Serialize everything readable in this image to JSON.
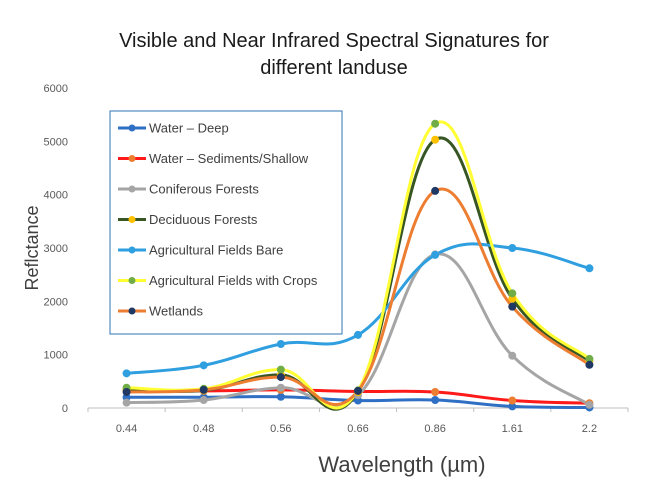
{
  "chart_data": {
    "type": "line",
    "title": [
      "Visible and Near Infrared Spectral Signatures for",
      "different landuse"
    ],
    "xlabel": "Wavelength (µm)",
    "ylabel": "Reflctance",
    "categories": [
      "0.44",
      "0.48",
      "0.56",
      "0.66",
      "0.86",
      "1.61",
      "2.2"
    ],
    "ylim": [
      0,
      6000
    ],
    "yticks": [
      0,
      1000,
      2000,
      3000,
      4000,
      5000,
      6000
    ],
    "ytick_labels": [
      "0",
      "1000",
      "2000",
      "3000",
      "4000",
      "5000",
      "6000"
    ],
    "grid": false,
    "legend_placement": "top-left",
    "smooth": true,
    "series": [
      {
        "name": "Water – Deep",
        "color": "#2f6fc4",
        "marker": "#2f6fc4",
        "values": [
          200,
          200,
          210,
          140,
          150,
          30,
          10
        ]
      },
      {
        "name": "Water – Sediments/Shallow",
        "color": "#ff1a1a",
        "marker": "#ed7d31",
        "values": [
          330,
          320,
          340,
          310,
          300,
          140,
          90
        ]
      },
      {
        "name": "Coniferous Forests",
        "color": "#a5a5a5",
        "marker": "#a5a5a5",
        "values": [
          100,
          150,
          380,
          240,
          2880,
          980,
          60
        ]
      },
      {
        "name": "Deciduous Forests",
        "color": "#375623",
        "marker": "#ffc000",
        "values": [
          350,
          330,
          620,
          300,
          5030,
          2050,
          880
        ]
      },
      {
        "name": "Agricultural Fields Bare",
        "color": "#2f9fe0",
        "marker": "#2f9fe0",
        "values": [
          650,
          800,
          1200,
          1370,
          2870,
          3000,
          2620
        ]
      },
      {
        "name": "Agricultural Fields with Crops",
        "color": "#ffff33",
        "marker": "#70ad47",
        "values": [
          380,
          360,
          720,
          330,
          5330,
          2150,
          920
        ]
      },
      {
        "name": "Wetlands",
        "color": "#ed7d31",
        "marker": "#1f3864",
        "values": [
          300,
          340,
          580,
          320,
          4070,
          1900,
          810
        ]
      }
    ]
  }
}
